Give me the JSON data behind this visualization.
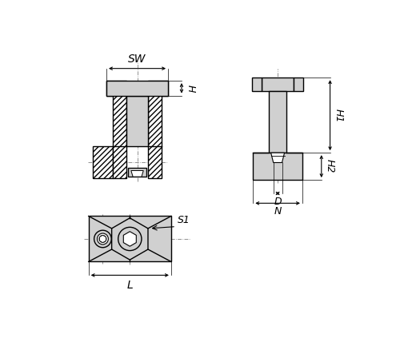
{
  "bg_color": "#ffffff",
  "line_color": "#000000",
  "fill_color": "#d0d0d0",
  "labels": {
    "SW": "SW",
    "H": "H",
    "H1": "H1",
    "H2": "H2",
    "D": "D",
    "N": "N",
    "L": "L",
    "S1": "S1"
  },
  "font_size": 9
}
